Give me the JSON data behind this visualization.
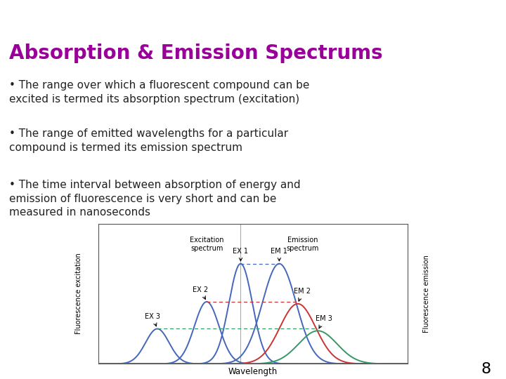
{
  "title": "Absorption & Emission Spectrums",
  "title_color": "#990099",
  "header_bar_color": "#990099",
  "background_color": "#ffffff",
  "bullet_points": [
    "The range over which a fluorescent compound can be\nexcited is termed its absorption spectrum (excitation)",
    "The range of emitted wavelengths for a particular\ncompound is termed its emission spectrum",
    "The time interval between absorption of energy and\nemission of fluorescence is very short and can be\nmeasured in nanoseconds"
  ],
  "bullet_color": "#222222",
  "page_number": "8",
  "chart": {
    "xlabel": "Wavelength",
    "ylabel_left": "Fluorescence excitation",
    "ylabel_right": "Fluorescence emission",
    "excitation_label": "Excitation\nspectrum",
    "emission_label": "Emission\nspectrum",
    "ex_labels": [
      "EX 1",
      "EX 2",
      "EX 3"
    ],
    "em_labels": [
      "EM 1",
      "EM 2",
      "EM 3"
    ],
    "curve_color_blue": "#4466bb",
    "curve_color_red": "#cc3333",
    "curve_color_green": "#339966",
    "dashed_color_blue": "#4466bb",
    "dashed_color_red": "#cc3333",
    "dashed_color_green": "#339966"
  }
}
